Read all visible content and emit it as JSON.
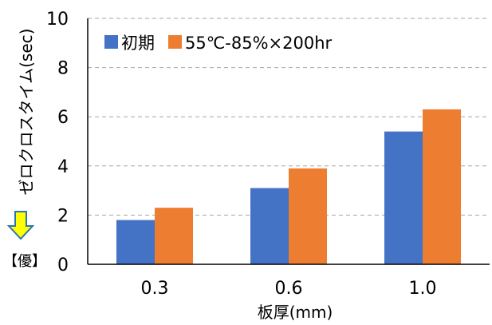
{
  "chart_data": {
    "type": "bar",
    "xlabel": "板厚(mm)",
    "ylabel": "ゼロクロスタイム(sec)",
    "categories": [
      "0.3",
      "0.6",
      "1.0"
    ],
    "series": [
      {
        "name": "初期",
        "values": [
          1.8,
          3.1,
          5.4
        ],
        "color": "#4472C4"
      },
      {
        "name": "55℃-85%×200hr",
        "values": [
          2.3,
          3.9,
          6.3
        ],
        "color": "#ED7D31"
      }
    ],
    "ylim": [
      0,
      10
    ],
    "yticks": [
      "0",
      "2",
      "4",
      "6",
      "8",
      "10"
    ],
    "grid": true,
    "legend": "top-left",
    "annotation": {
      "text": "【優】",
      "arrow_color": "#FFFF00",
      "arrow_border": "#2E75B6"
    }
  }
}
